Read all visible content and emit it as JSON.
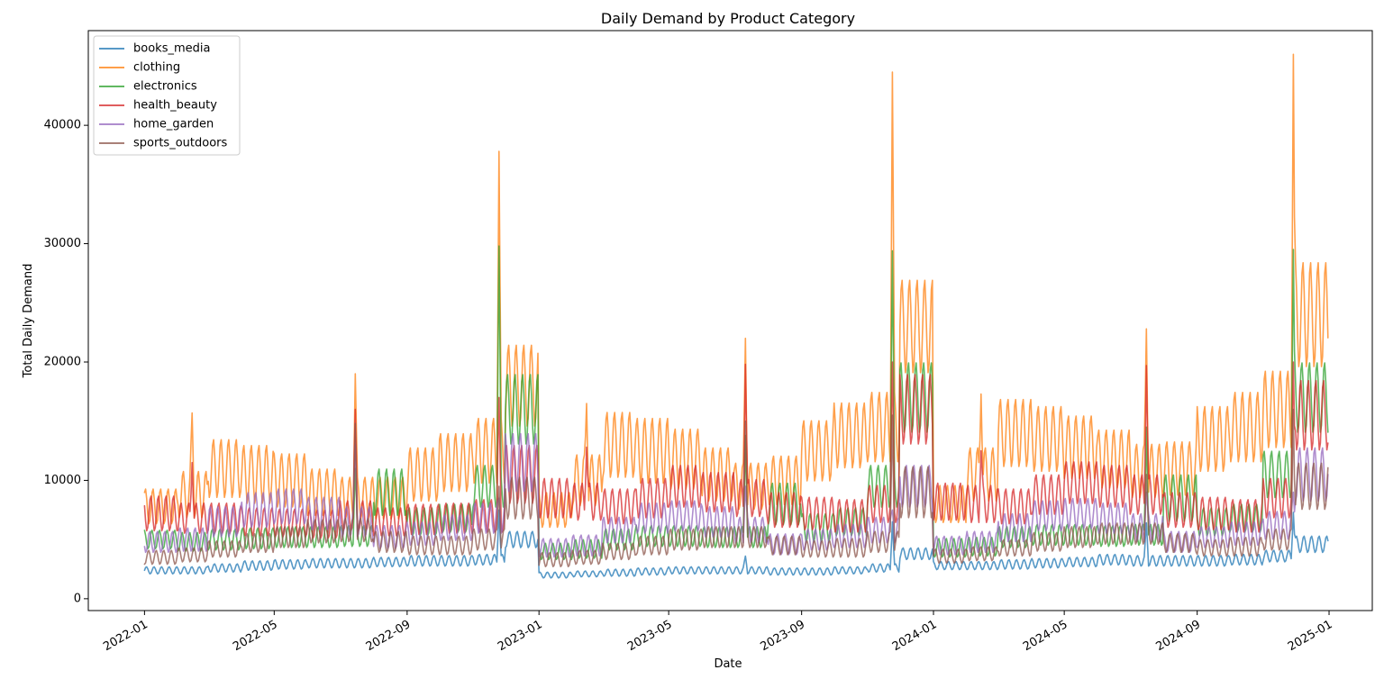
{
  "chart_data": {
    "type": "line",
    "title": "Daily Demand by Product Category",
    "xlabel": "Date",
    "ylabel": "Total Daily Demand",
    "x_range": [
      "2021-11-10",
      "2025-02-10"
    ],
    "ylim": [
      -1000,
      48000
    ],
    "x_ticks": [
      "2022-01",
      "2022-05",
      "2022-09",
      "2023-01",
      "2023-05",
      "2023-09",
      "2024-01",
      "2024-05",
      "2024-09",
      "2025-01"
    ],
    "y_ticks": [
      0,
      10000,
      20000,
      30000,
      40000
    ],
    "y_tick_labels": [
      "0",
      "10000",
      "20000",
      "30000",
      "40000"
    ],
    "grid": false,
    "legend_position": "upper-left",
    "line_opacity": 0.75,
    "x_start": "2022-01-01",
    "x_end": "2024-12-31",
    "series": [
      {
        "name": "books_media",
        "color": "#1f77b4",
        "monthly_base": [
          2400,
          2400,
          2600,
          2800,
          2900,
          3000,
          3000,
          3100,
          3200,
          3200,
          3300,
          5000,
          2000,
          2100,
          2200,
          2300,
          2400,
          2400,
          2400,
          2300,
          2300,
          2400,
          2600,
          3800,
          2800,
          2800,
          2900,
          3000,
          3100,
          3300,
          3200,
          3200,
          3200,
          3300,
          3600,
          4600
        ],
        "weekly_amplitude": [
          300,
          300,
          350,
          400,
          400,
          400,
          400,
          400,
          450,
          450,
          450,
          700,
          250,
          250,
          300,
          300,
          300,
          300,
          300,
          300,
          300,
          300,
          350,
          500,
          350,
          350,
          400,
          400,
          400,
          450,
          450,
          450,
          450,
          450,
          500,
          700
        ],
        "spikes": [
          {
            "date": "2022-11-25",
            "value": 7500
          },
          {
            "date": "2023-07-11",
            "value": 3600
          },
          {
            "date": "2023-11-24",
            "value": 6500
          },
          {
            "date": "2024-07-16",
            "value": 6400
          },
          {
            "date": "2024-11-29",
            "value": 7300
          }
        ]
      },
      {
        "name": "clothing",
        "color": "#ff7f0e",
        "monthly_base": [
          7800,
          8800,
          11000,
          10500,
          10000,
          9000,
          8500,
          8500,
          10500,
          11500,
          12500,
          18000,
          7500,
          10000,
          13000,
          12500,
          11800,
          10500,
          9500,
          10000,
          12500,
          13800,
          14500,
          23000,
          8000,
          10500,
          14000,
          13500,
          12800,
          11800,
          10800,
          11000,
          13500,
          14500,
          16000,
          24000
        ],
        "weekly_amplitude": [
          1500,
          2000,
          2500,
          2500,
          2300,
          2000,
          1800,
          1800,
          2300,
          2500,
          2800,
          3500,
          1500,
          2200,
          2800,
          2800,
          2600,
          2300,
          2000,
          2100,
          2600,
          2800,
          3000,
          4000,
          1600,
          2300,
          2900,
          2800,
          2700,
          2500,
          2300,
          2300,
          2800,
          3000,
          3300,
          4500
        ],
        "spikes": [
          {
            "date": "2022-02-14",
            "value": 15700
          },
          {
            "date": "2022-07-15",
            "value": 19000
          },
          {
            "date": "2022-11-25",
            "value": 37800
          },
          {
            "date": "2023-02-14",
            "value": 16500
          },
          {
            "date": "2023-07-11",
            "value": 22000
          },
          {
            "date": "2023-11-24",
            "value": 44500
          },
          {
            "date": "2024-02-14",
            "value": 17300
          },
          {
            "date": "2024-07-16",
            "value": 22800
          },
          {
            "date": "2024-11-29",
            "value": 46000
          }
        ]
      },
      {
        "name": "electronics",
        "color": "#2ca02c",
        "monthly_base": [
          5000,
          4800,
          5000,
          5100,
          5200,
          5200,
          5300,
          9000,
          6500,
          6800,
          9500,
          16000,
          4000,
          4200,
          5000,
          5300,
          5300,
          5200,
          5200,
          8000,
          6000,
          6500,
          9500,
          17000,
          4300,
          4400,
          5200,
          5400,
          5400,
          5300,
          5400,
          8500,
          6500,
          6800,
          10500,
          17000
        ],
        "weekly_amplitude": [
          800,
          800,
          900,
          900,
          900,
          900,
          900,
          2000,
          1200,
          1200,
          1800,
          3000,
          700,
          800,
          900,
          900,
          900,
          900,
          900,
          1800,
          1200,
          1200,
          1800,
          3000,
          800,
          800,
          900,
          900,
          900,
          900,
          900,
          2000,
          1200,
          1200,
          2000,
          3000
        ],
        "spikes": [
          {
            "date": "2022-07-15",
            "value": 11000
          },
          {
            "date": "2022-11-25",
            "value": 29800
          },
          {
            "date": "2023-07-11",
            "value": 13800
          },
          {
            "date": "2023-11-24",
            "value": 29400
          },
          {
            "date": "2024-07-16",
            "value": 14500
          },
          {
            "date": "2024-11-29",
            "value": 29500
          }
        ]
      },
      {
        "name": "health_beauty",
        "color": "#d62728",
        "monthly_base": [
          7200,
          6800,
          6800,
          6500,
          6400,
          6300,
          7000,
          6500,
          6700,
          6800,
          7000,
          10500,
          8500,
          8200,
          7800,
          8500,
          9500,
          9000,
          8500,
          7500,
          7200,
          7000,
          8000,
          16000,
          8200,
          8000,
          7800,
          8800,
          9800,
          9500,
          8800,
          7500,
          7200,
          7000,
          8500,
          15500
        ],
        "weekly_amplitude": [
          1500,
          1300,
          1300,
          1200,
          1200,
          1200,
          1300,
          1200,
          1300,
          1300,
          1400,
          2500,
          1700,
          1600,
          1500,
          1700,
          1800,
          1700,
          1600,
          1500,
          1400,
          1400,
          1600,
          3000,
          1600,
          1600,
          1500,
          1700,
          1800,
          1800,
          1700,
          1500,
          1400,
          1400,
          1700,
          3000
        ],
        "spikes": [
          {
            "date": "2022-02-14",
            "value": 11500
          },
          {
            "date": "2022-07-15",
            "value": 16000
          },
          {
            "date": "2022-11-25",
            "value": 17000
          },
          {
            "date": "2023-02-14",
            "value": 12800
          },
          {
            "date": "2023-07-11",
            "value": 19800
          },
          {
            "date": "2023-11-24",
            "value": 20000
          },
          {
            "date": "2024-02-14",
            "value": 12500
          },
          {
            "date": "2024-07-16",
            "value": 19700
          },
          {
            "date": "2024-11-29",
            "value": 20000
          }
        ]
      },
      {
        "name": "home_garden",
        "color": "#9467bd",
        "monthly_base": [
          4800,
          5000,
          6500,
          7500,
          7800,
          7200,
          6500,
          5200,
          5500,
          6000,
          6800,
          11500,
          4300,
          4500,
          5800,
          6800,
          7000,
          6500,
          5800,
          4600,
          5000,
          5300,
          5800,
          9500,
          4500,
          4800,
          6000,
          7000,
          7200,
          6800,
          6000,
          4800,
          5200,
          5500,
          6200,
          10500
        ],
        "weekly_amplitude": [
          900,
          1000,
          1300,
          1500,
          1500,
          1400,
          1300,
          1000,
          1000,
          1100,
          1300,
          2500,
          800,
          900,
          1100,
          1300,
          1300,
          1300,
          1100,
          900,
          900,
          1000,
          1100,
          1800,
          800,
          900,
          1200,
          1300,
          1300,
          1300,
          1200,
          900,
          900,
          1000,
          1200,
          2300
        ],
        "spikes": [
          {
            "date": "2022-07-15",
            "value": 13000
          },
          {
            "date": "2022-11-25",
            "value": 8500
          },
          {
            "date": "2023-07-11",
            "value": 9500
          },
          {
            "date": "2023-11-24",
            "value": 7500
          },
          {
            "date": "2024-07-16",
            "value": 9000
          },
          {
            "date": "2024-11-29",
            "value": 9000
          }
        ]
      },
      {
        "name": "sports_outdoors",
        "color": "#8c564b",
        "monthly_base": [
          3500,
          3700,
          4200,
          4700,
          5200,
          5700,
          5800,
          4800,
          4500,
          4500,
          5000,
          8500,
          3300,
          3500,
          4000,
          4500,
          5000,
          5200,
          5200,
          4500,
          4200,
          4300,
          4800,
          9000,
          3600,
          3800,
          4300,
          4800,
          5200,
          5500,
          5500,
          4700,
          4300,
          4400,
          5000,
          9500
        ],
        "weekly_amplitude": [
          600,
          600,
          700,
          800,
          900,
          1000,
          1000,
          900,
          800,
          800,
          900,
          1800,
          600,
          600,
          700,
          800,
          900,
          900,
          900,
          800,
          700,
          800,
          900,
          2200,
          600,
          600,
          700,
          800,
          900,
          900,
          900,
          800,
          700,
          800,
          900,
          2000
        ],
        "spikes": [
          {
            "date": "2022-07-15",
            "value": 14800
          },
          {
            "date": "2022-11-25",
            "value": 9500
          },
          {
            "date": "2023-07-11",
            "value": 15000
          },
          {
            "date": "2023-11-24",
            "value": 15500
          },
          {
            "date": "2024-07-16",
            "value": 10500
          },
          {
            "date": "2024-11-29",
            "value": 16000
          }
        ]
      }
    ]
  }
}
